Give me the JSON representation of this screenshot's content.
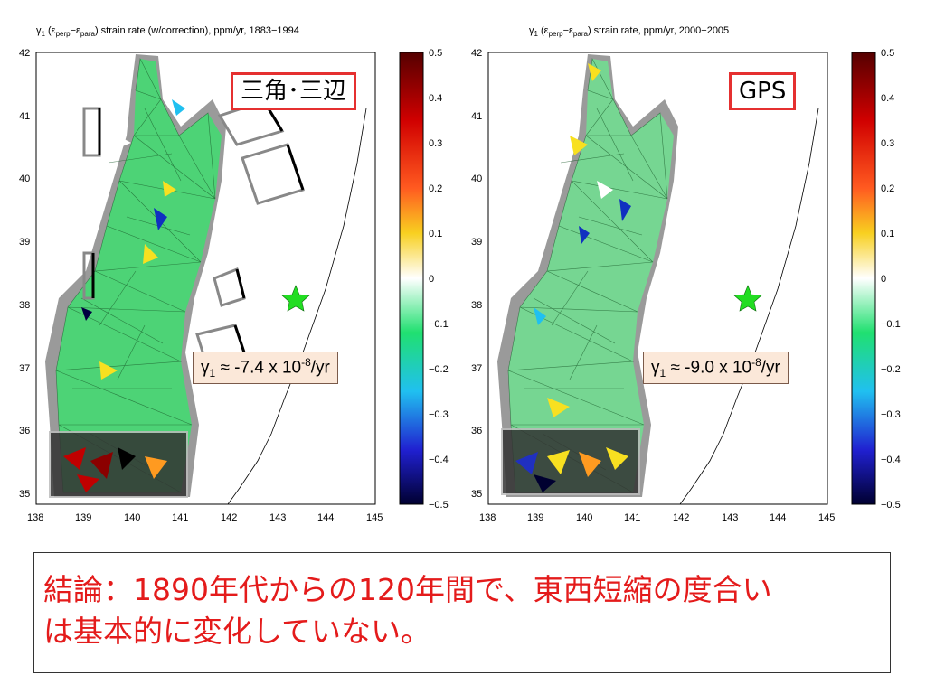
{
  "left_panel": {
    "title_prefix": "γ",
    "title_sub1": "1",
    "title_mid1": " (ε",
    "title_sub2": "perp",
    "title_mid2": "−ε",
    "title_sub3": "para",
    "title_suffix": ") strain rate (w/correction), ppm/yr, 1883−1994",
    "label_box": "三角･三辺",
    "gamma_prefix": "γ",
    "gamma_sub": "1",
    "gamma_mid": " ≈ -7.4 x 10",
    "gamma_sup": "-8",
    "gamma_unit": "/yr"
  },
  "right_panel": {
    "title_prefix": "γ",
    "title_sub1": "1",
    "title_mid1": " (ε",
    "title_sub2": "perp",
    "title_mid2": "−ε",
    "title_sub3": "para",
    "title_suffix": ") strain rate, ppm/yr, 2000−2005",
    "label_box": "GPS",
    "gamma_prefix": "γ",
    "gamma_sub": "1",
    "gamma_mid": " ≈ -9.0 x 10",
    "gamma_sup": "-8",
    "gamma_unit": "/yr"
  },
  "axes": {
    "lat_ticks": [
      "42",
      "41",
      "40",
      "39",
      "38",
      "37",
      "36",
      "35"
    ],
    "lon_ticks": [
      "138",
      "139",
      "140",
      "141",
      "142",
      "143",
      "144",
      "145"
    ]
  },
  "colorbar": {
    "ticks": [
      "0.5",
      "0.4",
      "0.3",
      "0.2",
      "0.1",
      "0",
      "−0.1",
      "−0.2",
      "−0.3",
      "−0.4",
      "−0.5"
    ],
    "colors": [
      "#550000",
      "#c00000",
      "#ff2020",
      "#ff9a20",
      "#f8e020",
      "#ffffff",
      "#20e070",
      "#20d0a0",
      "#20c0f0",
      "#2020d0",
      "#000030"
    ]
  },
  "conclusion": {
    "line1": "結論：1890年代からの120年間で、東西短縮の度合い",
    "line2": "は基本的に変化していない。"
  }
}
